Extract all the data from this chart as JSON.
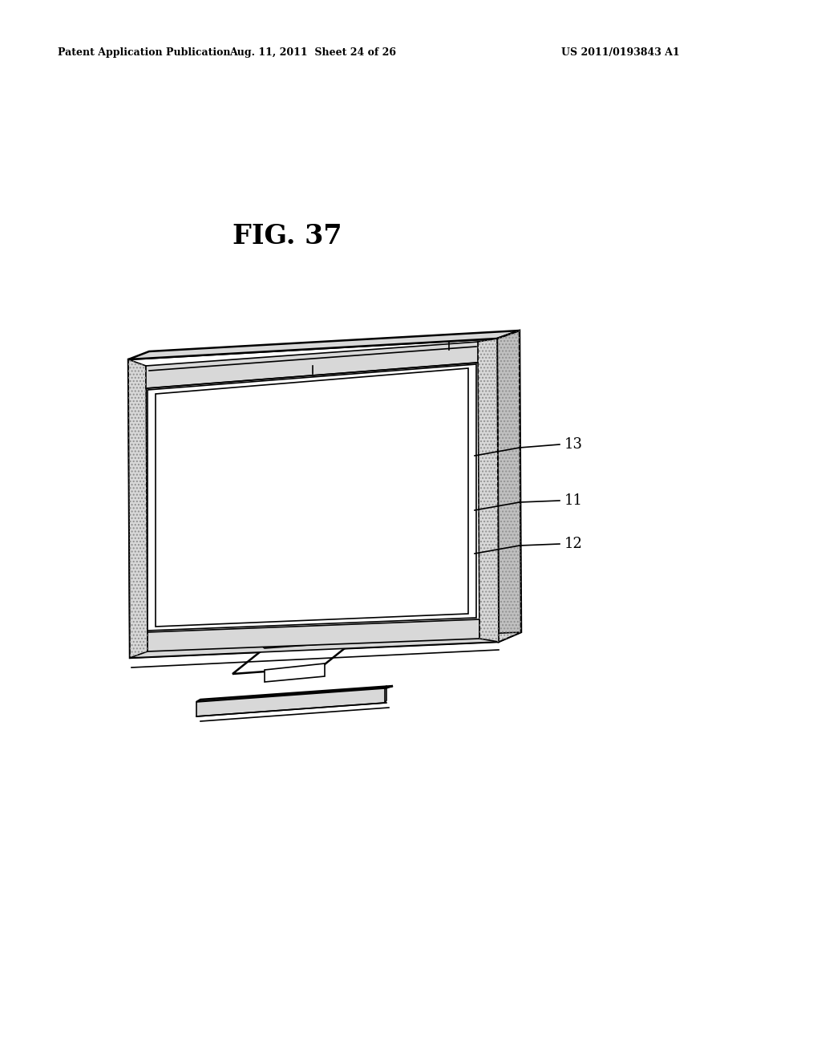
{
  "background_color": "#ffffff",
  "header_left": "Patent Application Publication",
  "header_mid": "Aug. 11, 2011  Sheet 24 of 26",
  "header_right": "US 2011/0193843 A1",
  "fig_label": "FIG. 37",
  "line_color": "#000000",
  "hatch_color": "#b0b0b0",
  "light_gray": "#d8d8d8",
  "mid_gray": "#c0c0c0"
}
